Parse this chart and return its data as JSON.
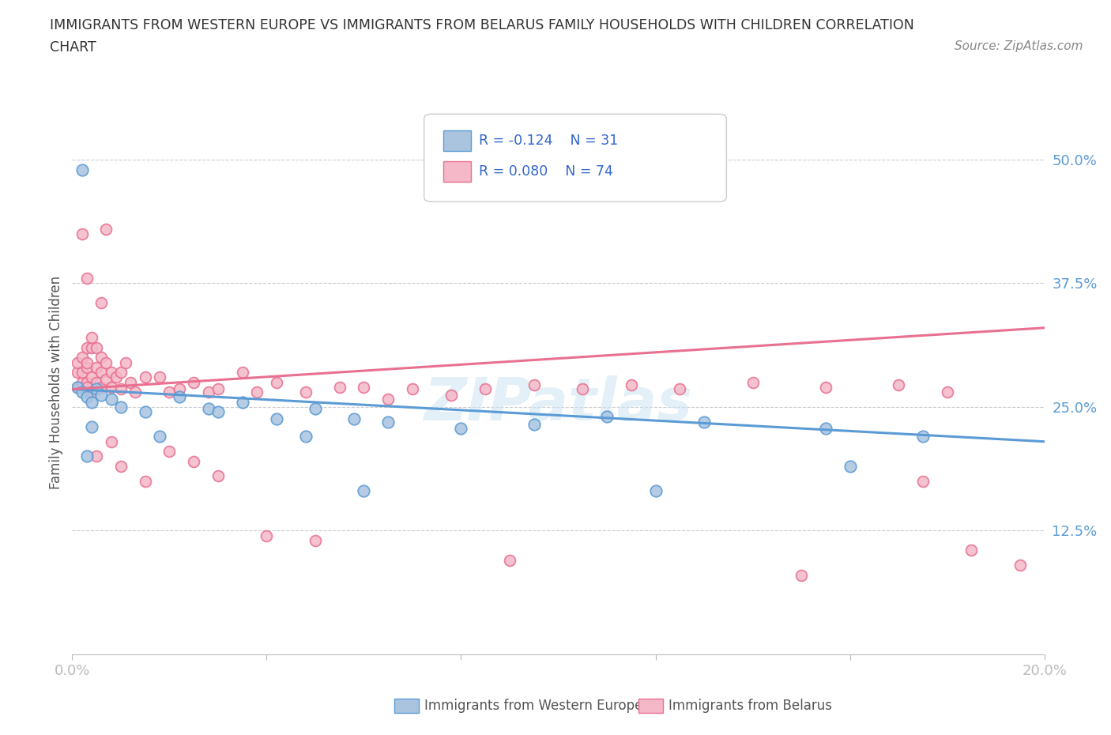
{
  "title_line1": "IMMIGRANTS FROM WESTERN EUROPE VS IMMIGRANTS FROM BELARUS FAMILY HOUSEHOLDS WITH CHILDREN CORRELATION",
  "title_line2": "CHART",
  "source": "Source: ZipAtlas.com",
  "ylabel": "Family Households with Children",
  "xlim": [
    0.0,
    0.2
  ],
  "ylim": [
    0.0,
    0.55
  ],
  "xticks": [
    0.0,
    0.04,
    0.08,
    0.12,
    0.16,
    0.2
  ],
  "xtick_labels": [
    "0.0%",
    "",
    "",
    "",
    "",
    "20.0%"
  ],
  "ytick_positions": [
    0.125,
    0.25,
    0.375,
    0.5
  ],
  "ytick_labels": [
    "12.5%",
    "25.0%",
    "37.5%",
    "50.0%"
  ],
  "hlines": [
    0.125,
    0.25,
    0.375,
    0.5
  ],
  "blue_color": "#aac4e0",
  "blue_line_color": "#5b9bd5",
  "pink_color": "#f4b8c8",
  "pink_line_color": "#e87090",
  "legend_label_blue": "Immigrants from Western Europe",
  "legend_label_pink": "Immigrants from Belarus",
  "blue_scatter_x": [
    0.001,
    0.002,
    0.003,
    0.004,
    0.005,
    0.006,
    0.008,
    0.015,
    0.022,
    0.028,
    0.035,
    0.042,
    0.05,
    0.058,
    0.065,
    0.08,
    0.095,
    0.11,
    0.13,
    0.155,
    0.175,
    0.002,
    0.003,
    0.004,
    0.01,
    0.018,
    0.03,
    0.048,
    0.06,
    0.12,
    0.16
  ],
  "blue_scatter_y": [
    0.27,
    0.265,
    0.26,
    0.255,
    0.268,
    0.262,
    0.258,
    0.245,
    0.26,
    0.248,
    0.255,
    0.238,
    0.248,
    0.238,
    0.235,
    0.228,
    0.232,
    0.24,
    0.235,
    0.228,
    0.22,
    0.49,
    0.2,
    0.23,
    0.25,
    0.22,
    0.245,
    0.22,
    0.165,
    0.165,
    0.19
  ],
  "pink_scatter_x": [
    0.001,
    0.001,
    0.001,
    0.002,
    0.002,
    0.002,
    0.003,
    0.003,
    0.003,
    0.003,
    0.003,
    0.004,
    0.004,
    0.004,
    0.005,
    0.005,
    0.005,
    0.006,
    0.006,
    0.006,
    0.007,
    0.007,
    0.008,
    0.008,
    0.009,
    0.01,
    0.01,
    0.011,
    0.012,
    0.013,
    0.015,
    0.018,
    0.02,
    0.022,
    0.025,
    0.028,
    0.03,
    0.035,
    0.038,
    0.042,
    0.048,
    0.055,
    0.06,
    0.065,
    0.07,
    0.078,
    0.085,
    0.095,
    0.105,
    0.115,
    0.125,
    0.14,
    0.155,
    0.17,
    0.18,
    0.002,
    0.003,
    0.004,
    0.005,
    0.006,
    0.007,
    0.008,
    0.01,
    0.015,
    0.02,
    0.025,
    0.03,
    0.04,
    0.05,
    0.09,
    0.15,
    0.175,
    0.185,
    0.195
  ],
  "pink_scatter_y": [
    0.27,
    0.285,
    0.295,
    0.275,
    0.285,
    0.3,
    0.275,
    0.29,
    0.31,
    0.27,
    0.295,
    0.265,
    0.28,
    0.31,
    0.275,
    0.29,
    0.31,
    0.27,
    0.285,
    0.3,
    0.278,
    0.295,
    0.27,
    0.285,
    0.28,
    0.268,
    0.285,
    0.295,
    0.275,
    0.265,
    0.28,
    0.28,
    0.265,
    0.268,
    0.275,
    0.265,
    0.268,
    0.285,
    0.265,
    0.275,
    0.265,
    0.27,
    0.27,
    0.258,
    0.268,
    0.262,
    0.268,
    0.272,
    0.268,
    0.272,
    0.268,
    0.275,
    0.27,
    0.272,
    0.265,
    0.425,
    0.38,
    0.32,
    0.2,
    0.355,
    0.43,
    0.215,
    0.19,
    0.175,
    0.205,
    0.195,
    0.18,
    0.12,
    0.115,
    0.095,
    0.08,
    0.175,
    0.105,
    0.09
  ],
  "background_color": "#ffffff",
  "watermark": "ZIPatlas"
}
